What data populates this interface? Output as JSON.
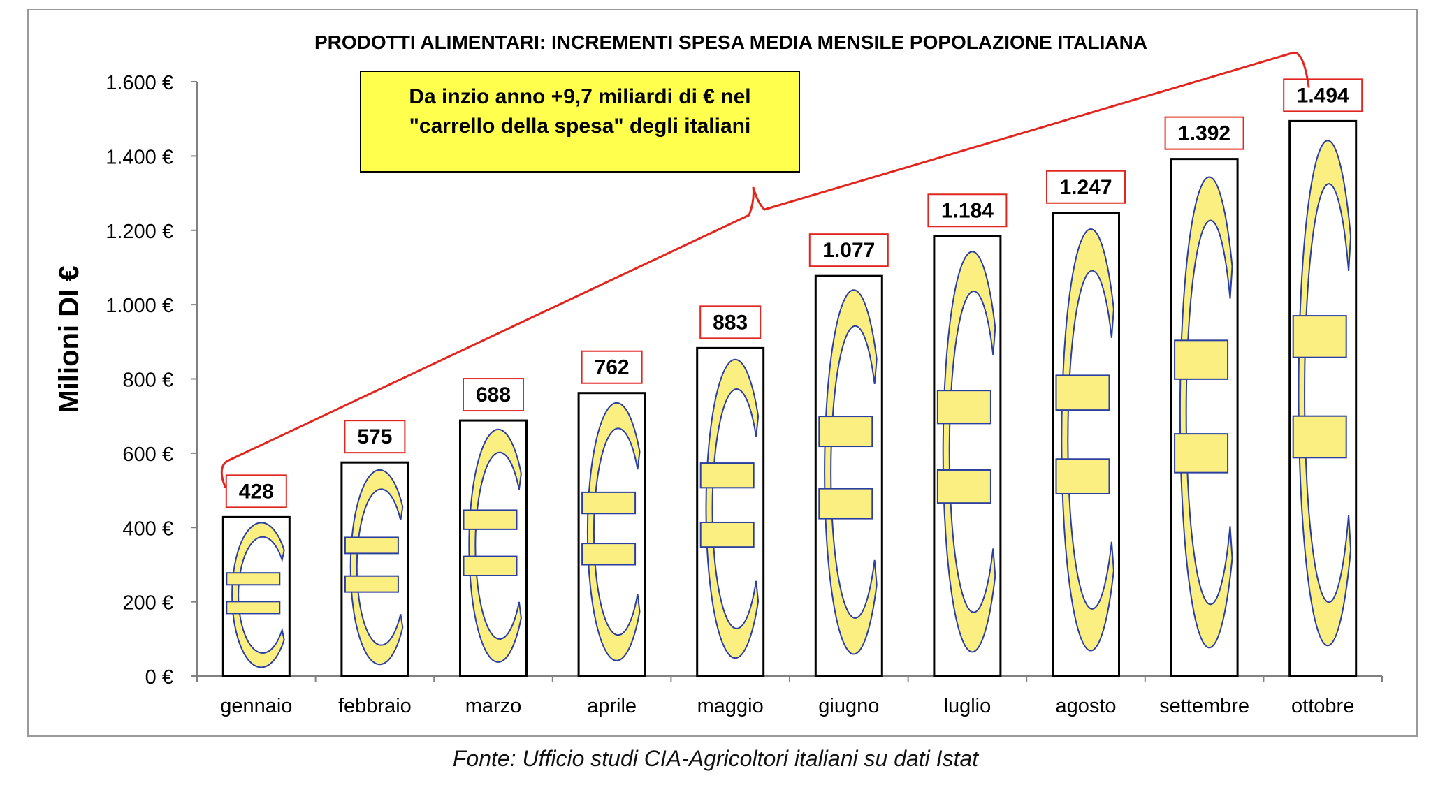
{
  "chart_data": {
    "type": "bar",
    "title": "PRODOTTI ALIMENTARI: INCREMENTI SPESA MEDIA MENSILE POPOLAZIONE ITALIANA",
    "xlabel": "",
    "ylabel": "Milioni DI €",
    "categories": [
      "gennaio",
      "febbraio",
      "marzo",
      "aprile",
      "maggio",
      "giugno",
      "luglio",
      "agosto",
      "settembre",
      "ottobre"
    ],
    "values": [
      428,
      575,
      688,
      762,
      883,
      1077,
      1184,
      1247,
      1392,
      1494
    ],
    "value_labels": [
      "428",
      "575",
      "688",
      "762",
      "883",
      "1.077",
      "1.184",
      "1.247",
      "1.392",
      "1.494"
    ],
    "ylim": [
      0,
      1600
    ],
    "yticks": [
      0,
      200,
      400,
      600,
      800,
      1000,
      1200,
      1400,
      1600
    ],
    "ytick_labels": [
      "0 €",
      "200 €",
      "400 €",
      "600 €",
      "800 €",
      "1.000 €",
      "1.200 €",
      "1.400 €",
      "1.600 €"
    ],
    "grid": false,
    "legend": "none",
    "annotation": {
      "line1": "Da inzio anno +9,7 miliardi di €  nel",
      "line2": "\"carrello della spesa\" degli italiani"
    },
    "bar_fill_icon": "euro-icon",
    "colors": {
      "bar_outline": "#000000",
      "euro_fill": "#FBEF82",
      "euro_stroke": "#2B3FA0",
      "label_border": "#E0261E",
      "brace": "#E0261E",
      "annotation_bg": "#FFFF4D",
      "frame": "#9A9A9A"
    }
  },
  "source_note": "Fonte: Ufficio studi CIA-Agricoltori italiani su dati Istat"
}
